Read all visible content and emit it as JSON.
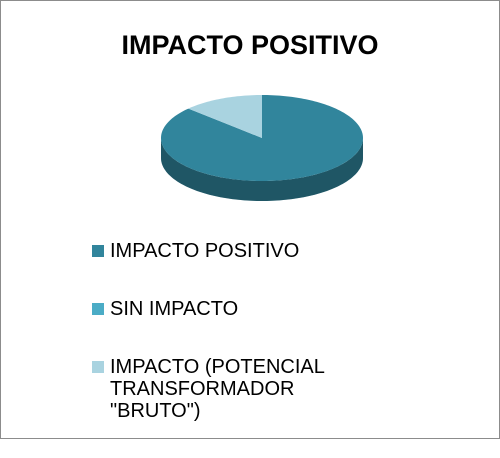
{
  "chart_data": {
    "type": "pie",
    "title": "IMPACTO POSITIVO",
    "categories": [
      "IMPACTO POSITIVO",
      "SIN IMPACTO",
      "IMPACTO (POTENCIAL TRANSFORMADOR \"BRUTO\")"
    ],
    "values": [
      87,
      0,
      13
    ],
    "colors": [
      "#31859c",
      "#4bacc6",
      "#a9d3e0"
    ],
    "legend": "bottom"
  }
}
